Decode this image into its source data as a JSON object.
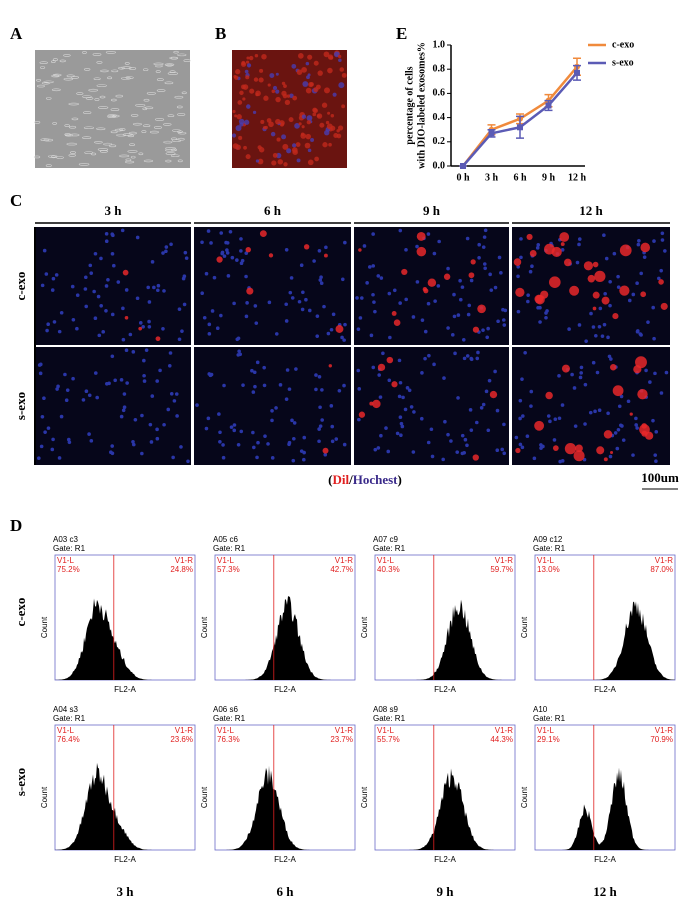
{
  "panels": {
    "a": "A",
    "b": "B",
    "c": "C",
    "d": "D",
    "e": "E"
  },
  "chart_data": {
    "type": "line",
    "ylabel": [
      "percentage of cells",
      "with DIO-labeled exosomes%"
    ],
    "categories": [
      "0 h",
      "3 h",
      "6 h",
      "9 h",
      "12 h"
    ],
    "series": [
      {
        "name": "c-exo",
        "color": "#f08a3c",
        "values": [
          0,
          0.3,
          0.39,
          0.54,
          0.82
        ],
        "errors": [
          0,
          0.04,
          0.04,
          0.05,
          0.07
        ]
      },
      {
        "name": "s-exo",
        "color": "#5b5bb5",
        "values": [
          0,
          0.27,
          0.32,
          0.5,
          0.77
        ],
        "errors": [
          0,
          0.03,
          0.09,
          0.04,
          0.06
        ]
      }
    ],
    "ylim": [
      0,
      1
    ],
    "yticks": [
      {
        "value": 0,
        "label": "0.0"
      },
      0.2,
      0.4,
      0.6,
      0.8,
      {
        "value": 1,
        "label": "1.0"
      }
    ],
    "legend": "upper right"
  },
  "panel_c": {
    "columns": [
      "3 h",
      "6 h",
      "9 h",
      "12 h"
    ],
    "rows": [
      "c-exo",
      "s-exo"
    ],
    "caption": {
      "open": "(",
      "dil": "Dil",
      "slash": "/",
      "hoechst": "Hochest",
      "close": ")"
    },
    "scale": "100um"
  },
  "panel_d": {
    "rows": [
      "c-exo",
      "s-exo"
    ],
    "columns": [
      "3 h",
      "6 h",
      "9 h",
      "12 h"
    ],
    "y_label": "Count",
    "x_label": "FL2-A",
    "gate": "Gate: R1",
    "left": "V1-L",
    "right": "V1-R",
    "plots": [
      [
        {
          "name": "A03 c3",
          "l": "75.2%",
          "r": "24.8%"
        },
        {
          "name": "A05 c6",
          "l": "57.3%",
          "r": "42.7%"
        },
        {
          "name": "A07 c9",
          "l": "40.3%",
          "r": "59.7%"
        },
        {
          "name": "A09 c12",
          "l": "13.0%",
          "r": "87.0%"
        }
      ],
      [
        {
          "name": "A04 s3",
          "l": "76.4%",
          "r": "23.6%"
        },
        {
          "name": "A06 s6",
          "l": "76.3%",
          "r": "23.7%"
        },
        {
          "name": "A08 s9",
          "l": "55.7%",
          "r": "44.3%"
        },
        {
          "name": "A10",
          "l": "29.1%",
          "r": "70.9%"
        }
      ]
    ]
  }
}
